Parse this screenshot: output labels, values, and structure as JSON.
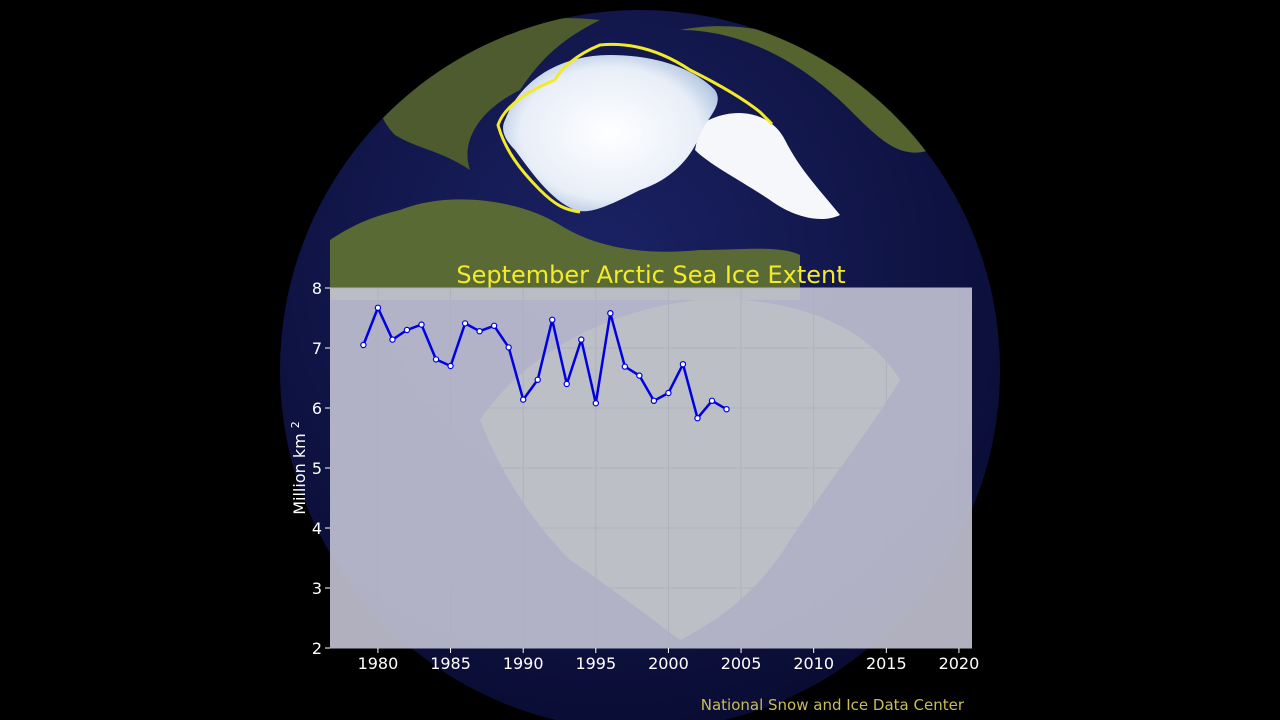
{
  "colors": {
    "background": "#000000",
    "ocean": "#0b0d3e",
    "land": "#4a5a2c",
    "ice": "#f2f6fb",
    "median_line": "#f2ea2a",
    "plot_panel": "#c8c8d8",
    "series_line": "#0000e0",
    "title": "#f2ea2a",
    "credit": "#c9bd5a",
    "tick_text": "#ffffff"
  },
  "chart_data": {
    "type": "line",
    "title": "September Arctic Sea Ice Extent",
    "xlabel": "",
    "ylabel": "Million km",
    "ylabel_superscript": "2",
    "xlim": [
      1976.7,
      2020.9
    ],
    "ylim": [
      2,
      8
    ],
    "xticks": [
      1980,
      1985,
      1990,
      1995,
      2000,
      2005,
      2010,
      2015,
      2020
    ],
    "yticks": [
      2,
      3,
      4,
      5,
      6,
      7,
      8
    ],
    "grid": true,
    "series": [
      {
        "x": [
          1979,
          1980,
          1981,
          1982,
          1983,
          1984,
          1985,
          1986,
          1987,
          1988,
          1989,
          1990,
          1991,
          1992,
          1993,
          1994,
          1995,
          1996,
          1997,
          1998,
          1999,
          2000,
          2001,
          2002,
          2003,
          2004
        ],
        "y": [
          7.05,
          7.67,
          7.14,
          7.3,
          7.39,
          6.81,
          6.7,
          7.41,
          7.28,
          7.37,
          7.01,
          6.14,
          6.47,
          7.47,
          6.4,
          7.14,
          6.08,
          7.58,
          6.69,
          6.54,
          6.12,
          6.25,
          6.73,
          5.83,
          6.12,
          5.98
        ]
      }
    ]
  },
  "credit": "National Snow and Ice Data Center"
}
